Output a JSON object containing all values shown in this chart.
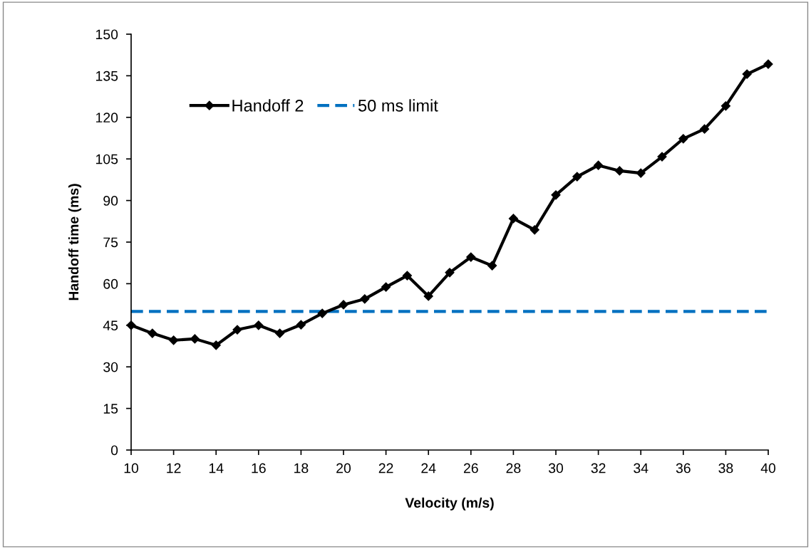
{
  "chart_data": {
    "type": "line",
    "xlabel": "Velocity (m/s)",
    "ylabel": "Handoff time (ms)",
    "x": [
      10,
      11,
      12,
      13,
      14,
      15,
      16,
      17,
      18,
      19,
      20,
      21,
      22,
      23,
      24,
      25,
      26,
      27,
      28,
      29,
      30,
      31,
      32,
      33,
      34,
      35,
      36,
      37,
      38,
      39,
      40
    ],
    "series": [
      {
        "name": "Handoff 2",
        "color": "#000000",
        "values": [
          45,
          42.1,
          39.6,
          40.1,
          37.8,
          43.4,
          45,
          42.1,
          45.2,
          49.3,
          52.4,
          54.5,
          58.8,
          62.9,
          55.5,
          64,
          69.6,
          66.5,
          83.5,
          79.4,
          92,
          98.6,
          102.7,
          100.7,
          99.9,
          105.8,
          112.3,
          115.8,
          124.1,
          135.6,
          139.2
        ]
      }
    ],
    "ref_lines": [
      {
        "axis": "y",
        "value": 50,
        "label": "50 ms limit",
        "color": "#0070c0",
        "line_style": "dashed"
      }
    ],
    "xlim": [
      10,
      40
    ],
    "xticks": [
      10,
      12,
      14,
      16,
      18,
      20,
      22,
      24,
      26,
      28,
      30,
      32,
      34,
      36,
      38,
      40
    ],
    "ylim": [
      0,
      150
    ],
    "yticks": [
      0,
      15,
      30,
      45,
      60,
      75,
      90,
      105,
      120,
      135,
      150
    ],
    "marker": "diamond",
    "line_style": "solid",
    "grid": false,
    "legend": "top left"
  }
}
